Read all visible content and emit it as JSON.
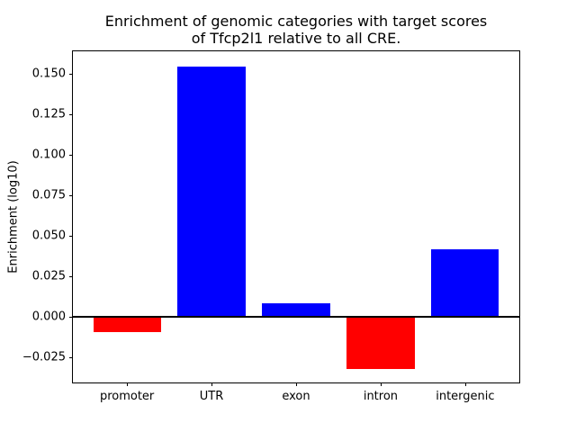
{
  "chart_data": {
    "type": "bar",
    "title": "Enrichment of genomic categories with target scores\nof Tfcp2l1 relative to all CRE.",
    "title_lines": [
      "Enrichment of genomic categories with target scores",
      "of Tfcp2l1 relative to all CRE."
    ],
    "xlabel": "",
    "ylabel": "Enrichment (log10)",
    "categories": [
      "promoter",
      "UTR",
      "exon",
      "intron",
      "intergenic"
    ],
    "values": [
      -0.0094,
      0.1544,
      0.0083,
      -0.0322,
      0.0417
    ],
    "bar_colors": [
      "#ff0000",
      "#0000ff",
      "#0000ff",
      "#ff0000",
      "#0000ff"
    ],
    "color_rule": {
      "positive": "#0000ff",
      "negative": "#ff0000"
    },
    "bar_width": 0.8,
    "xlim": [
      -0.64,
      4.64
    ],
    "ylim": [
      -0.0406,
      0.1639
    ],
    "yticks": {
      "values": [
        0.15,
        0.125,
        0.1,
        0.075,
        0.05,
        0.025,
        0.0,
        -0.025
      ],
      "labels": [
        "0.150",
        "0.125",
        "0.100",
        "0.075",
        "0.050",
        "0.025",
        "0.000",
        "−0.025"
      ]
    },
    "zero_line": true,
    "grid": false,
    "axis_color": "#000000",
    "background_color": "#ffffff"
  }
}
